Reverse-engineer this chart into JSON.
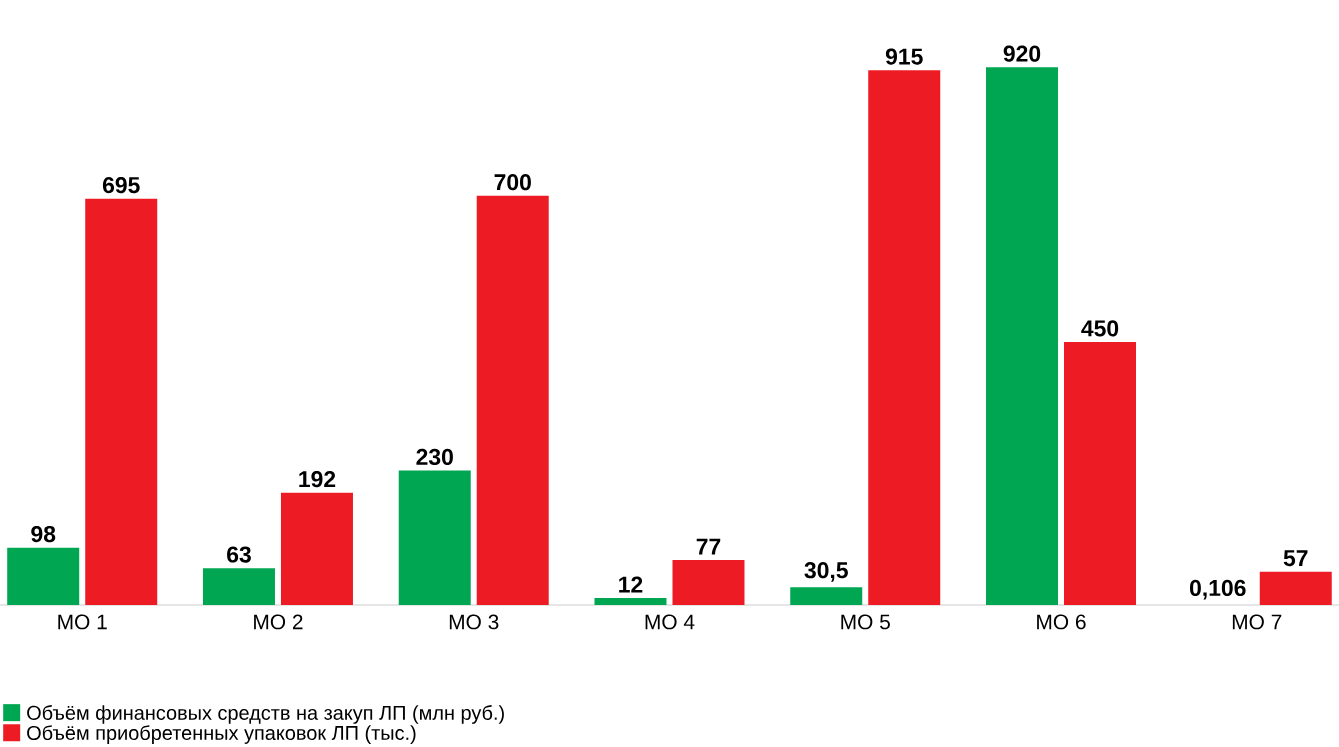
{
  "chart_data": {
    "type": "bar",
    "categories": [
      "МО 1",
      "МО 2",
      "МО 3",
      "МО 4",
      "МО 5",
      "МО 6",
      "МО 7"
    ],
    "series": [
      {
        "name": "Объём финансовых средств на закуп ЛП (млн руб.)",
        "color": "#00a651",
        "values": [
          98,
          63,
          230,
          12,
          30.5,
          920,
          0.106
        ],
        "value_labels": [
          "98",
          "63",
          "230",
          "12",
          "30,5",
          "920",
          "0,106"
        ]
      },
      {
        "name": "Объём приобретенных упаковок ЛП (тыс.)",
        "color": "#ed1c24",
        "values": [
          695,
          192,
          700,
          77,
          915,
          450,
          57
        ],
        "value_labels": [
          "695",
          "192",
          "700",
          "77",
          "915",
          "450",
          "57"
        ]
      }
    ],
    "legend": "bottom left"
  }
}
